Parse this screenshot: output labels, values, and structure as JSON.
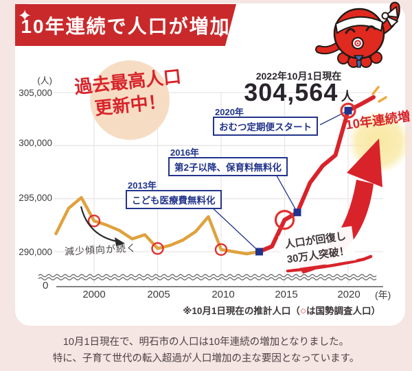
{
  "banner": {
    "title": "10年連続で人口が増加"
  },
  "highlight": {
    "line1": "過去最高人口",
    "line2": "更新中！"
  },
  "current": {
    "date_label": "2022年10月1日現在",
    "value": "304,564",
    "unit": "人"
  },
  "annotations": [
    {
      "year_label": "2013年",
      "text": "こども医療費無料化"
    },
    {
      "year_label": "2016年",
      "text": "第2子以降、保育料無料化"
    },
    {
      "year_label": "2020年",
      "text": "おむつ定期便スタート"
    }
  ],
  "decline_note": "減少傾向が続く",
  "streak_badge": "10年連続増",
  "recovery": {
    "line1": "人口が回復し",
    "line2": "30万人突破！"
  },
  "footnote": {
    "pre": "※10月1日現在の推計人口（",
    "circle": "○",
    "post": "は国勢調査人口）"
  },
  "description": {
    "line1": "10月1日現在で、明石市の人口は10年連続の増加となりました。",
    "line2": "特に、子育て世代の転入超過が人口増加の主な要因となっています。"
  },
  "axis": {
    "y_unit": "(人)",
    "x_unit": "(年)",
    "zero": "0"
  },
  "chart_data": {
    "type": "line",
    "title": "10年連続で人口が増加（明石市）",
    "x": [
      1997,
      1998,
      1999,
      2000,
      2001,
      2002,
      2003,
      2004,
      2005,
      2006,
      2007,
      2008,
      2009,
      2010,
      2011,
      2012,
      2013,
      2014,
      2015,
      2016,
      2017,
      2018,
      2019,
      2020,
      2021,
      2022
    ],
    "series": [
      {
        "name": "人口（10月1日現在の推計人口）",
        "values": [
          291700,
          294100,
          295100,
          292900,
          292500,
          292000,
          291200,
          291600,
          290300,
          290600,
          291100,
          291900,
          293300,
          290200,
          290000,
          289800,
          290000,
          290500,
          293000,
          293700,
          296500,
          298100,
          299100,
          303300,
          303900,
          304564
        ]
      }
    ],
    "x_ticks": [
      2000,
      2005,
      2010,
      2015,
      2020
    ],
    "x_tick_labels": [
      "2000",
      "2005",
      "2010",
      "2015",
      "2020"
    ],
    "y_ticks": [
      305000,
      300000,
      295000,
      290000
    ],
    "y_tick_labels": [
      "305,000",
      "300,000",
      "295,000",
      "290,000"
    ],
    "ylim": [
      290000,
      305000
    ],
    "y_axis_break": true,
    "grid": true,
    "census_years": [
      2000,
      2005,
      2010,
      2015,
      2020
    ],
    "policy_years": [
      2013,
      2016,
      2020
    ],
    "color_change_year": 2013,
    "line_colors": {
      "before": "#dfa23e",
      "after": "#d8232a"
    },
    "final_point": {
      "year": 2022,
      "value": 304564,
      "label": "304,564人"
    }
  }
}
